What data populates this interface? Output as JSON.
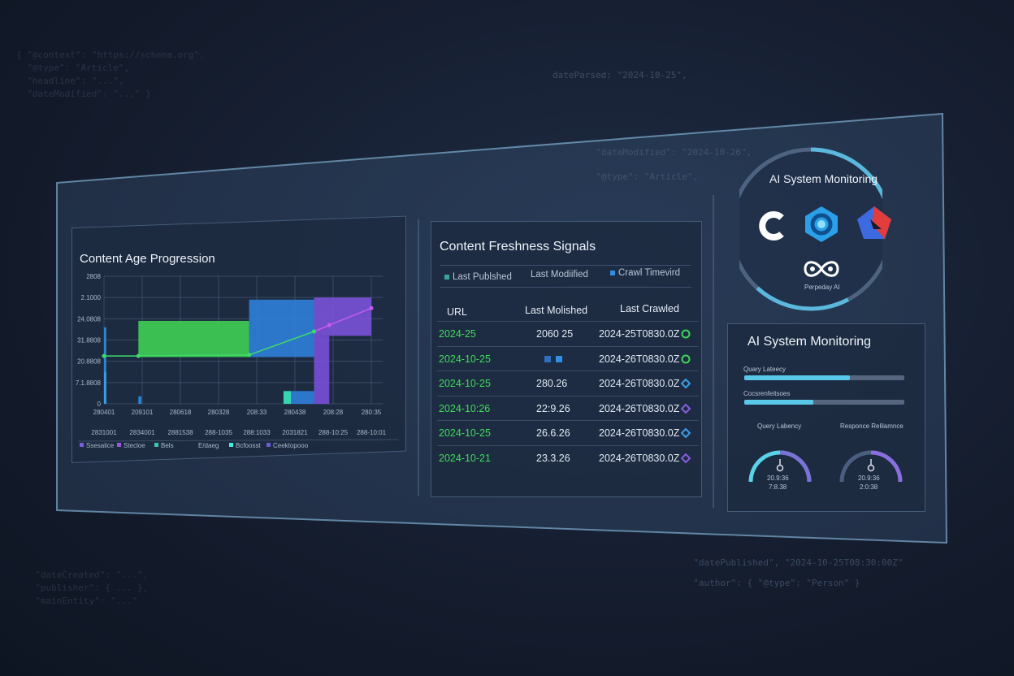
{
  "background_code": [
    "dateParsed: \"2024-10-25\",",
    "  \"dateModified\": \"2024-10-26\",",
    "  \"@type\": \"Article\",",
    "  \"datePublished\", \"2024-10-25T08:30:00Z\"",
    "  \"author\": { \"@type\": \"Person\" }"
  ],
  "chart_panel": {
    "title": "Content Age Progression",
    "chart_data": {
      "type": "bar",
      "title": "Content Age Progression",
      "y_tick_labels": [
        "0",
        "7.1.8808",
        "20.8808",
        "31.8808",
        "24.0808",
        "2.1000",
        "2808"
      ],
      "ylim": [
        0,
        6
      ],
      "x_tick_labels": [
        "280401",
        "209101",
        "280618",
        "280328",
        "208:33",
        "280438",
        "208:28",
        "280:35"
      ],
      "x_tick_labels_row2": [
        "2831001",
        "2834001",
        "2881538",
        "288-1035",
        "288:1033",
        "2031821",
        "288-10:25",
        "288-10:01"
      ],
      "grid": true,
      "line": {
        "x": [
          0,
          0.9,
          3.8,
          5.5,
          5.9,
          7
        ],
        "y": [
          2.25,
          2.25,
          2.3,
          3.4,
          3.7,
          4.5
        ],
        "colors": [
          "#3fdc6a",
          "#3fdc6a",
          "#3fdc6a",
          "#3fdc6a",
          "#c45cf0",
          "#c45cf0"
        ]
      },
      "regions": [
        {
          "x": [
            0.9,
            3.8
          ],
          "y": [
            2.2,
            3.9
          ],
          "color": "#3fcf55"
        },
        {
          "x": [
            3.8,
            5.5
          ],
          "y": [
            2.2,
            4.9
          ],
          "color": "#2f7fd8"
        },
        {
          "x": [
            5.5,
            7
          ],
          "y": [
            3.2,
            5.0
          ],
          "color": "#7a52d8"
        },
        {
          "x": [
            5.5,
            5.9
          ],
          "y": [
            0,
            3.2
          ],
          "color": "#7a4fd8"
        },
        {
          "x": [
            0,
            0.06
          ],
          "y": [
            0,
            3.6
          ],
          "color": "#2f8fd8"
        },
        {
          "x": [
            0,
            0.06
          ],
          "y": [
            0,
            1.5
          ],
          "color": "#3aa0e8"
        },
        {
          "x": [
            0.9,
            0.98
          ],
          "y": [
            0,
            0.35
          ],
          "color": "#2f8fd8"
        },
        {
          "x": [
            4.7,
            4.9
          ],
          "y": [
            0,
            0.6
          ],
          "color": "#38e8c0"
        },
        {
          "x": [
            4.9,
            5.5
          ],
          "y": [
            0,
            0.6
          ],
          "color": "#2f7fd8"
        }
      ],
      "legend": [
        {
          "label": "Ssesalice",
          "color": "#7a5ce0"
        },
        {
          "label": "Stecloe",
          "color": "#a055e0"
        },
        {
          "label": "Bels",
          "color": "#3bc4b0"
        },
        {
          "label": "E/daeg",
          "color": ""
        },
        {
          "label": "Bcfoosst",
          "color": "#3ef0d8"
        },
        {
          "label": "Ceektopooo",
          "color": "#6a5cd8"
        }
      ],
      "legend_placement": "bottom"
    }
  },
  "table_panel": {
    "title": "Content Freshness Signals",
    "legend": [
      {
        "label": "Last Publshed",
        "color": "#3aa59a"
      },
      {
        "label": "Last Modiified",
        "color": ""
      },
      {
        "label": "Crawl Timevird",
        "color": "#2f8fe8"
      }
    ],
    "columns": [
      "URL",
      "Last Molished",
      "Last Crawled"
    ],
    "rows": [
      {
        "url": "2024-25",
        "modified": "2060 25",
        "crawled": "2024-25T0830.0Z",
        "status": "circle",
        "status_color": "#3fd45a"
      },
      {
        "url": "2024-10-25",
        "modified": "",
        "crawled": "2024-26T0830.0Z",
        "status": "circle",
        "status_color": "#3fd45a"
      },
      {
        "url": "2024-10-25",
        "modified": "280.26",
        "crawled": "2024-26T0830.0Z",
        "status": "diamond",
        "status_color": "#3a9ee8"
      },
      {
        "url": "2024-10:26",
        "modified": "22:9.26",
        "crawled": "2024-26T0830.0Z",
        "status": "diamond",
        "status_color": "#8a5ce0"
      },
      {
        "url": "2024-10-25",
        "modified": "26.6.26",
        "crawled": "2024-26T0830.0Z",
        "status": "diamond",
        "status_color": "#3a9ee8"
      },
      {
        "url": "2024-10-21",
        "modified": "23.3.26",
        "crawled": "2024-26T0830.0Z",
        "status": "diamond",
        "status_color": "#8a5ce0"
      }
    ],
    "accent_green": "#3fdc5a"
  },
  "ai_circle": {
    "title": "AI System Monitoring",
    "logos": [
      "c-logo-icon",
      "swirl-logo-icon",
      "red-diamond-logo-icon",
      "infinity-logo-icon"
    ],
    "caption": "Perpeday AI"
  },
  "monitor_panel": {
    "title": "AI System Monitoring",
    "bars": [
      {
        "label": "Quary Lateecy",
        "percent": 66
      },
      {
        "label": "Cocsrenfeitsoes",
        "percent": 43
      }
    ],
    "gauges": [
      {
        "label": "Query Labency",
        "line1": "20.9:36",
        "line2": "7:8.38"
      },
      {
        "label": "Responce Relilamnce",
        "line1": "20.9:36",
        "line2": "2:0:38"
      }
    ]
  }
}
